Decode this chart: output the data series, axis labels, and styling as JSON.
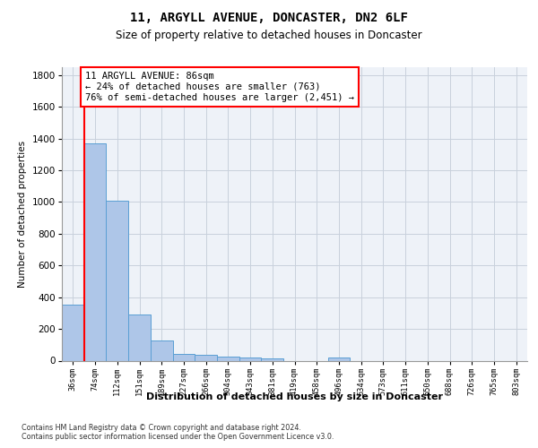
{
  "title1": "11, ARGYLL AVENUE, DONCASTER, DN2 6LF",
  "title2": "Size of property relative to detached houses in Doncaster",
  "xlabel": "Distribution of detached houses by size in Doncaster",
  "ylabel": "Number of detached properties",
  "bar_labels": [
    "36sqm",
    "74sqm",
    "112sqm",
    "151sqm",
    "189sqm",
    "227sqm",
    "266sqm",
    "304sqm",
    "343sqm",
    "381sqm",
    "419sqm",
    "458sqm",
    "496sqm",
    "534sqm",
    "573sqm",
    "611sqm",
    "650sqm",
    "688sqm",
    "726sqm",
    "765sqm",
    "803sqm"
  ],
  "bar_values": [
    355,
    1370,
    1010,
    290,
    125,
    42,
    35,
    27,
    20,
    15,
    0,
    0,
    20,
    0,
    0,
    0,
    0,
    0,
    0,
    0,
    0
  ],
  "bar_color": "#aec6e8",
  "bar_edge_color": "#5a9fd4",
  "vline_color": "red",
  "annotation_text": "11 ARGYLL AVENUE: 86sqm\n← 24% of detached houses are smaller (763)\n76% of semi-detached houses are larger (2,451) →",
  "ylim": [
    0,
    1850
  ],
  "yticks": [
    0,
    200,
    400,
    600,
    800,
    1000,
    1200,
    1400,
    1600,
    1800
  ],
  "footnote": "Contains HM Land Registry data © Crown copyright and database right 2024.\nContains public sector information licensed under the Open Government Licence v3.0.",
  "bg_color": "#eef2f8",
  "grid_color": "#c8d0dc"
}
